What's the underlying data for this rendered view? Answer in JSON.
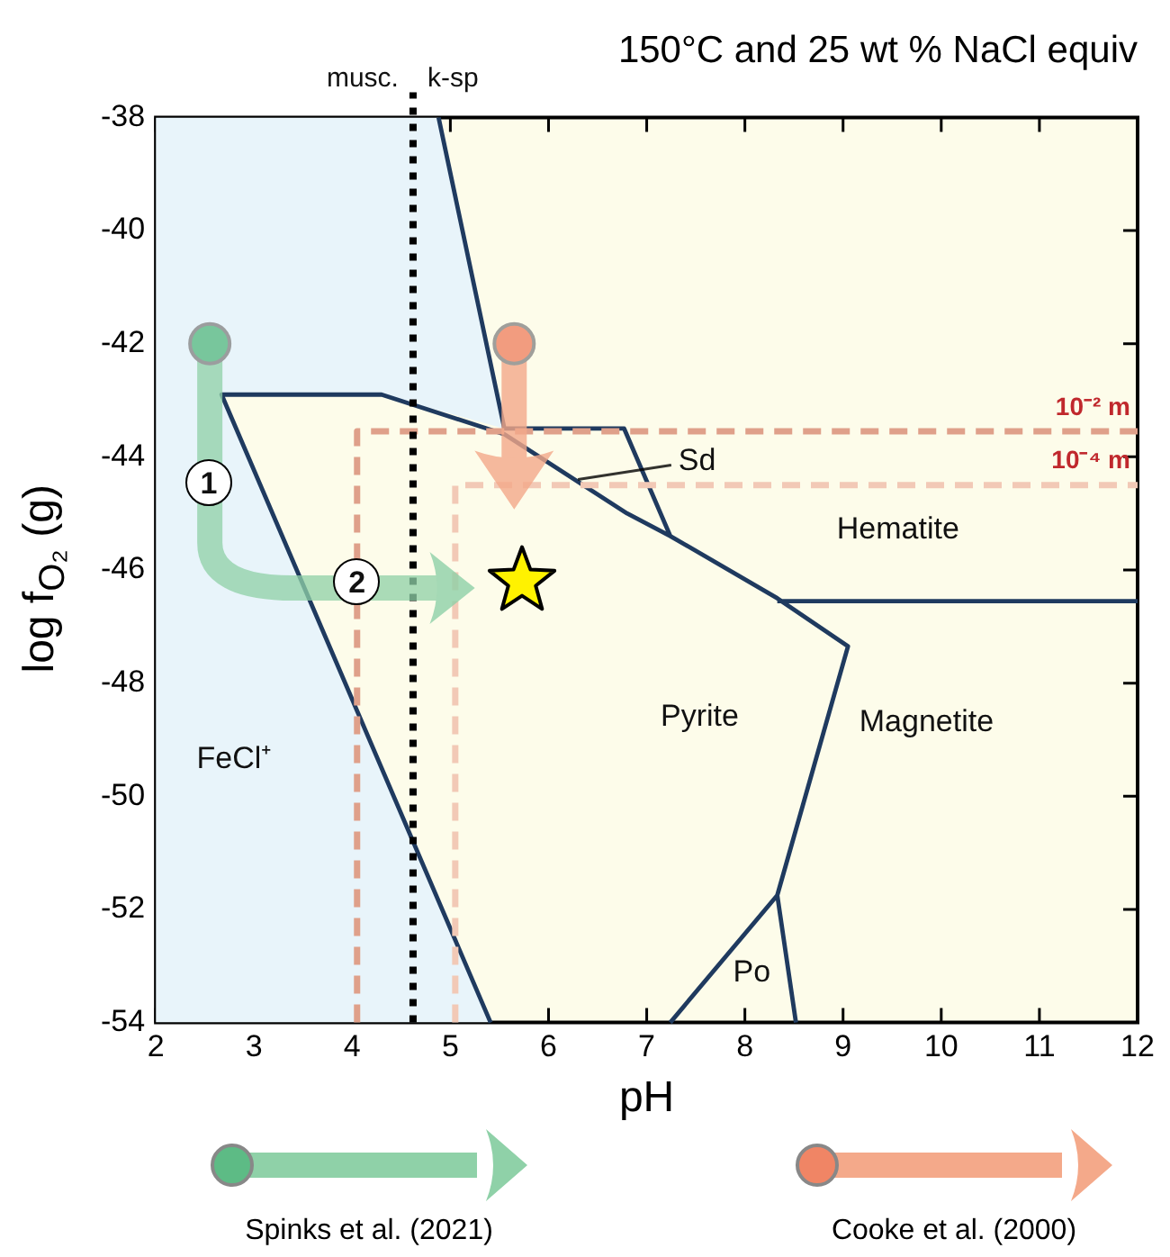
{
  "chart_data": {
    "type": "line",
    "title": "150°C and 25 wt % NaCl equiv",
    "xlabel": "pH",
    "ylabel": "log f$_{O₂}$ (g)",
    "xlim": [
      2,
      12
    ],
    "xticks": [
      2,
      3,
      4,
      5,
      6,
      7,
      8,
      9,
      10,
      11,
      12
    ],
    "ylim": [
      -54,
      -38
    ],
    "yticks": [
      -54,
      -52,
      -50,
      -48,
      -46,
      -44,
      -42,
      -40,
      -38
    ],
    "grid": false,
    "legend": false,
    "marker": "none",
    "line_style": "solid",
    "series": [
      {
        "type": "area",
        "color": "#e8f4fa",
        "x": [
          2,
          4.88,
          5.55,
          4.3,
          2.67,
          5.41,
          2
        ],
        "values": [
          -38,
          -38,
          -43.5,
          -42.9,
          -42.9,
          -54,
          -54
        ]
      },
      {
        "color": "#1f3a5f",
        "x": [
          5.41,
          2.67,
          4.3,
          5.55,
          6.8,
          7.24,
          8.33,
          9.05,
          8.33,
          8.52,
          null,
          4.88,
          5.55,
          6.77,
          7.24,
          null,
          8.33,
          12,
          null,
          8.33,
          7.24
        ],
        "values": [
          -54,
          -42.9,
          -42.9,
          -43.6,
          -45,
          -45.4,
          -46.5,
          -47.35,
          -51.75,
          -54,
          null,
          -38,
          -43.5,
          -43.5,
          -45.4,
          null,
          -46.55,
          -46.55,
          null,
          -51.75,
          -54
        ]
      },
      {
        "name": "10⁻² m",
        "color": "#dfa08a",
        "line_style": "dashed",
        "x": [
          4.05,
          4.05,
          12
        ],
        "values": [
          -54,
          -43.55,
          -43.55
        ]
      },
      {
        "name": "10⁻⁴ m",
        "color": "#f2c9b6",
        "line_style": "dashed",
        "x": [
          5.05,
          5.05,
          12
        ],
        "values": [
          -54,
          -44.5,
          -44.5
        ]
      },
      {
        "type": "scatter",
        "marker": "star",
        "color": "#fff200",
        "x": [
          5.73
        ],
        "values": [
          -46.2
        ]
      }
    ],
    "ref_lines": [
      {
        "axis": "x",
        "value": 4.62,
        "color": "#000000",
        "line_style": "dotted"
      }
    ],
    "annotations": [
      "musc.",
      "k-sp",
      "FeCl⁺",
      "Pyrite",
      "Magnetite",
      "Hematite",
      {
        "text": "Sd",
        "x": 6.3,
        "y": -44.4
      },
      "Po",
      "1",
      "2",
      "Spinks et al. (2021)",
      "Cooke et al. (2000)"
    ]
  }
}
